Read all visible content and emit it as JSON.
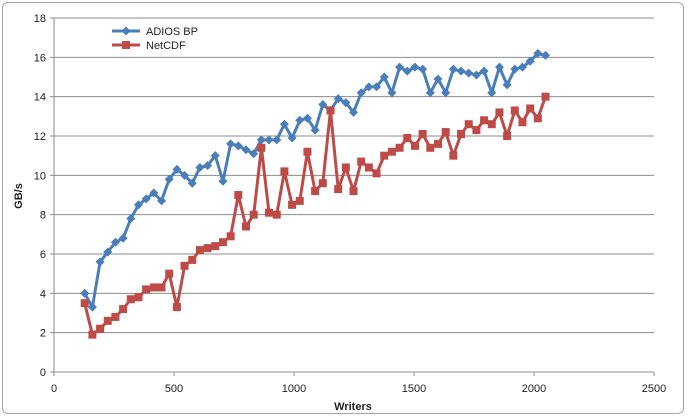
{
  "chart_data": {
    "type": "line",
    "xlabel": "Writers",
    "ylabel": "GB/s",
    "xlim": [
      0,
      2500
    ],
    "ylim": [
      0,
      18
    ],
    "x_ticks": [
      0,
      500,
      1000,
      1500,
      2000,
      2500
    ],
    "y_ticks": [
      0,
      2,
      4,
      6,
      8,
      10,
      12,
      14,
      16,
      18
    ],
    "grid": "horizontal",
    "legend_position": "top-left",
    "series": [
      {
        "name": "ADIOS BP",
        "color": "#4a7ebb",
        "marker": "diamond",
        "points": [
          [
            128,
            4.0
          ],
          [
            160,
            3.3
          ],
          [
            192,
            5.6
          ],
          [
            224,
            6.1
          ],
          [
            256,
            6.6
          ],
          [
            288,
            6.8
          ],
          [
            320,
            7.8
          ],
          [
            352,
            8.5
          ],
          [
            384,
            8.8
          ],
          [
            416,
            9.1
          ],
          [
            448,
            8.7
          ],
          [
            480,
            9.8
          ],
          [
            512,
            10.3
          ],
          [
            544,
            10.0
          ],
          [
            576,
            9.6
          ],
          [
            608,
            10.4
          ],
          [
            640,
            10.5
          ],
          [
            672,
            11.0
          ],
          [
            704,
            9.7
          ],
          [
            736,
            11.6
          ],
          [
            768,
            11.5
          ],
          [
            800,
            11.3
          ],
          [
            832,
            11.1
          ],
          [
            864,
            11.8
          ],
          [
            896,
            11.8
          ],
          [
            928,
            11.8
          ],
          [
            960,
            12.6
          ],
          [
            992,
            11.9
          ],
          [
            1024,
            12.8
          ],
          [
            1056,
            12.9
          ],
          [
            1088,
            12.3
          ],
          [
            1120,
            13.6
          ],
          [
            1152,
            13.3
          ],
          [
            1184,
            13.9
          ],
          [
            1216,
            13.7
          ],
          [
            1248,
            13.2
          ],
          [
            1280,
            14.2
          ],
          [
            1312,
            14.5
          ],
          [
            1344,
            14.5
          ],
          [
            1376,
            15.0
          ],
          [
            1408,
            14.2
          ],
          [
            1440,
            15.5
          ],
          [
            1472,
            15.3
          ],
          [
            1504,
            15.5
          ],
          [
            1536,
            15.4
          ],
          [
            1568,
            14.2
          ],
          [
            1600,
            14.9
          ],
          [
            1632,
            14.2
          ],
          [
            1664,
            15.4
          ],
          [
            1696,
            15.3
          ],
          [
            1728,
            15.2
          ],
          [
            1760,
            15.1
          ],
          [
            1792,
            15.3
          ],
          [
            1824,
            14.2
          ],
          [
            1856,
            15.5
          ],
          [
            1888,
            14.6
          ],
          [
            1920,
            15.4
          ],
          [
            1952,
            15.5
          ],
          [
            1984,
            15.8
          ],
          [
            2016,
            16.2
          ],
          [
            2048,
            16.1
          ]
        ]
      },
      {
        "name": "NetCDF",
        "color": "#be4b48",
        "marker": "square",
        "points": [
          [
            128,
            3.5
          ],
          [
            160,
            1.9
          ],
          [
            192,
            2.2
          ],
          [
            224,
            2.6
          ],
          [
            256,
            2.8
          ],
          [
            288,
            3.2
          ],
          [
            320,
            3.7
          ],
          [
            352,
            3.8
          ],
          [
            384,
            4.2
          ],
          [
            416,
            4.3
          ],
          [
            448,
            4.3
          ],
          [
            480,
            5.0
          ],
          [
            512,
            3.3
          ],
          [
            544,
            5.4
          ],
          [
            576,
            5.7
          ],
          [
            608,
            6.2
          ],
          [
            640,
            6.3
          ],
          [
            672,
            6.4
          ],
          [
            704,
            6.6
          ],
          [
            736,
            6.9
          ],
          [
            768,
            9.0
          ],
          [
            800,
            7.4
          ],
          [
            832,
            8.0
          ],
          [
            864,
            11.4
          ],
          [
            896,
            8.1
          ],
          [
            928,
            8.0
          ],
          [
            960,
            10.2
          ],
          [
            992,
            8.5
          ],
          [
            1024,
            8.7
          ],
          [
            1056,
            11.2
          ],
          [
            1088,
            9.2
          ],
          [
            1120,
            9.6
          ],
          [
            1152,
            13.3
          ],
          [
            1184,
            9.3
          ],
          [
            1216,
            10.4
          ],
          [
            1248,
            9.2
          ],
          [
            1280,
            10.7
          ],
          [
            1312,
            10.4
          ],
          [
            1344,
            10.1
          ],
          [
            1376,
            11.0
          ],
          [
            1408,
            11.2
          ],
          [
            1440,
            11.4
          ],
          [
            1472,
            11.9
          ],
          [
            1504,
            11.5
          ],
          [
            1536,
            12.1
          ],
          [
            1568,
            11.4
          ],
          [
            1600,
            11.6
          ],
          [
            1632,
            12.2
          ],
          [
            1664,
            11.0
          ],
          [
            1696,
            12.1
          ],
          [
            1728,
            12.6
          ],
          [
            1760,
            12.3
          ],
          [
            1792,
            12.8
          ],
          [
            1824,
            12.6
          ],
          [
            1856,
            13.2
          ],
          [
            1888,
            12.0
          ],
          [
            1920,
            13.3
          ],
          [
            1952,
            12.7
          ],
          [
            1984,
            13.4
          ],
          [
            2016,
            12.9
          ],
          [
            2048,
            14.0
          ]
        ]
      }
    ]
  }
}
